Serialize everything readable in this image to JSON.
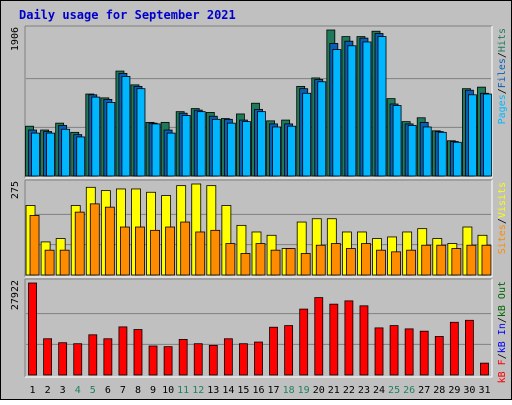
{
  "chart_data": {
    "type": "bar",
    "title": "Daily usage for September 2021",
    "categories": [
      "1",
      "2",
      "3",
      "4",
      "5",
      "6",
      "7",
      "8",
      "9",
      "10",
      "11",
      "12",
      "13",
      "14",
      "15",
      "16",
      "17",
      "18",
      "19",
      "20",
      "21",
      "22",
      "23",
      "24",
      "25",
      "26",
      "27",
      "28",
      "29",
      "30",
      "31"
    ],
    "weekend_days": [
      4,
      5,
      11,
      12,
      18,
      19,
      25,
      26
    ],
    "colors": {
      "background": "#c0c0c0",
      "panel_bg": "#c0c0c0",
      "title": "#0000cc",
      "hits": "#1f7a5a",
      "files": "#0a5fb5",
      "pages": "#00b7ff",
      "visits": "#ffff00",
      "sites": "#ff8c00",
      "kbin": "#0000ff",
      "kbout": "#006600",
      "kbf": "#ff0000",
      "weekday_label": "#000000",
      "weekend_label": "#208060"
    },
    "panels": [
      {
        "name": "hits-files-pages",
        "y_max_label": "1906",
        "ylim": [
          0,
          1906
        ],
        "right_legend": [
          {
            "text": "Pages",
            "color": "#00b7ff"
          },
          {
            "text": "/",
            "color": "#000000"
          },
          {
            "text": "Files",
            "color": "#0a5fb5"
          },
          {
            "text": "/",
            "color": "#000000"
          },
          {
            "text": "Hits",
            "color": "#1f7a5a"
          }
        ],
        "series": [
          {
            "name": "Hits",
            "values": [
              650,
              600,
              690,
              570,
              1070,
              1020,
              1370,
              1190,
              700,
              700,
              840,
              880,
              830,
              750,
              810,
              950,
              720,
              730,
              1170,
              1280,
              1906,
              1820,
              1820,
              1890,
              1010,
              710,
              760,
              590,
              460,
              1140,
              1160
            ]
          },
          {
            "name": "Files",
            "values": [
              600,
              580,
              660,
              540,
              1060,
              1000,
              1340,
              1170,
              690,
              600,
              820,
              860,
              780,
              740,
              730,
              870,
              680,
              680,
              1140,
              1260,
              1730,
              1760,
              1800,
              1860,
              940,
              680,
              700,
              580,
              450,
              1120,
              1080
            ]
          },
          {
            "name": "Pages",
            "values": [
              560,
              560,
              610,
              510,
              1030,
              960,
              1300,
              1140,
              680,
              560,
              790,
              840,
              740,
              690,
              710,
              840,
              640,
              650,
              1080,
              1230,
              1650,
              1700,
              1750,
              1820,
              920,
              660,
              640,
              570,
              440,
              1060,
              1070
            ]
          }
        ]
      },
      {
        "name": "visits-sites",
        "y_max_label": "275",
        "ylim": [
          0,
          275
        ],
        "right_legend": [
          {
            "text": "Sites",
            "color": "#ff8c00"
          },
          {
            "text": "/",
            "color": "#000000"
          },
          {
            "text": "Visits",
            "color": "#ffff00"
          }
        ],
        "series": [
          {
            "name": "Visits",
            "values": [
              210,
              100,
              110,
              210,
              265,
              255,
              260,
              260,
              250,
              240,
              270,
              275,
              270,
              210,
              150,
              130,
              120,
              80,
              160,
              170,
              170,
              130,
              130,
              110,
              115,
              130,
              140,
              110,
              95,
              145,
              120
            ]
          },
          {
            "name": "Sites",
            "values": [
              180,
              75,
              75,
              190,
              215,
              205,
              145,
              145,
              135,
              145,
              160,
              130,
              135,
              95,
              65,
              95,
              75,
              80,
              65,
              90,
              95,
              80,
              95,
              75,
              70,
              75,
              90,
              90,
              80,
              90,
              90
            ]
          }
        ]
      },
      {
        "name": "kbytes",
        "y_max_label": "27922",
        "ylim": [
          0,
          27922
        ],
        "right_legend": [
          {
            "text": "kB F",
            "color": "#ff0000"
          },
          {
            "text": "/",
            "color": "#000000"
          },
          {
            "text": "kB In",
            "color": "#0000ff"
          },
          {
            "text": "/",
            "color": "#000000"
          },
          {
            "text": "kB Out",
            "color": "#006600"
          }
        ],
        "series": [
          {
            "name": "kB F",
            "values": [
              27922,
              11000,
              9800,
              9500,
              12200,
              11000,
              14600,
              13800,
              8800,
              8600,
              10800,
              9500,
              9000,
              11000,
              9500,
              10000,
              14500,
              15000,
              20000,
              23500,
              21500,
              22500,
              21000,
              14300,
              15000,
              14000,
              13300,
              11700,
              16000,
              16600,
              3600
            ]
          }
        ]
      }
    ]
  }
}
